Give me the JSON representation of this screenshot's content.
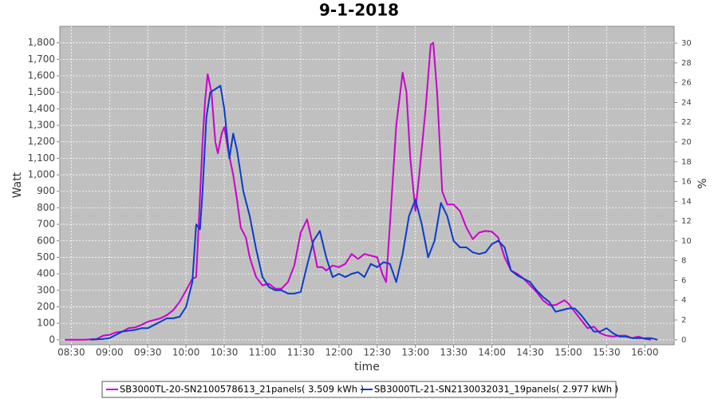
{
  "chart_data": {
    "type": "line",
    "title": "9-1-2018",
    "xlabel": "time",
    "ylabel": "Watt",
    "y2label": "%",
    "xlim": [
      "08:21",
      "16:23"
    ],
    "xticks": [
      "08:30",
      "09:00",
      "09:30",
      "10:00",
      "10:30",
      "11:00",
      "11:30",
      "12:00",
      "12:30",
      "13:00",
      "13:30",
      "14:00",
      "14:30",
      "15:00",
      "15:30",
      "16:00"
    ],
    "ylim": [
      -30,
      1900
    ],
    "yticks": [
      0,
      100,
      200,
      300,
      400,
      500,
      600,
      700,
      800,
      900,
      {
        "value": 1000,
        "label": "1,000"
      },
      {
        "value": 1100,
        "label": "1,100"
      },
      {
        "value": 1200,
        "label": "1,200"
      },
      {
        "value": 1300,
        "label": "1,300"
      },
      {
        "value": 1400,
        "label": "1,400"
      },
      {
        "value": 1500,
        "label": "1,500"
      },
      {
        "value": 1600,
        "label": "1,600"
      },
      {
        "value": 1700,
        "label": "1,700"
      },
      {
        "value": 1800,
        "label": "1,800"
      }
    ],
    "y2lim": [
      -0.5,
      31.7
    ],
    "y2ticks": [
      0,
      2,
      4,
      6,
      8,
      10,
      12,
      14,
      16,
      18,
      20,
      22,
      24,
      26,
      28,
      30
    ],
    "grid": true,
    "legend": "bottom",
    "series": [
      {
        "name": "SB3000TL-20-SN2100578613_21panels( 3.509 kWh )",
        "color": "#cc00cc",
        "x": [
          "08:25",
          "08:40",
          "08:50",
          "08:55",
          "09:00",
          "09:05",
          "09:10",
          "09:15",
          "09:20",
          "09:25",
          "09:30",
          "09:35",
          "09:40",
          "09:45",
          "09:50",
          "09:55",
          "10:00",
          "10:05",
          "10:08",
          "10:10",
          "10:13",
          "10:15",
          "10:17",
          "10:20",
          "10:23",
          "10:25",
          "10:28",
          "10:30",
          "10:33",
          "10:37",
          "10:40",
          "10:43",
          "10:47",
          "10:50",
          "10:55",
          "11:00",
          "11:05",
          "11:10",
          "11:15",
          "11:20",
          "11:25",
          "11:30",
          "11:35",
          "11:40",
          "11:43",
          "11:47",
          "11:50",
          "11:55",
          "12:00",
          "12:05",
          "12:10",
          "12:15",
          "12:20",
          "12:25",
          "12:30",
          "12:34",
          "12:37",
          "12:40",
          "12:45",
          "12:50",
          "12:53",
          "12:56",
          "13:00",
          "13:03",
          "13:08",
          "13:12",
          "13:14",
          "13:17",
          "13:21",
          "13:25",
          "13:30",
          "13:35",
          "13:40",
          "13:45",
          "13:50",
          "13:55",
          "14:00",
          "14:05",
          "14:10",
          "14:15",
          "14:20",
          "14:25",
          "14:30",
          "14:35",
          "14:40",
          "14:45",
          "14:50",
          "14:57",
          "15:00",
          "15:05",
          "15:10",
          "15:15",
          "15:20",
          "15:25",
          "15:30",
          "15:35",
          "15:40",
          "15:45",
          "15:50",
          "15:55",
          "16:00",
          "16:05"
        ],
        "values": [
          0,
          0,
          5,
          25,
          30,
          45,
          50,
          70,
          75,
          90,
          110,
          120,
          130,
          150,
          180,
          230,
          300,
          370,
          380,
          700,
          1200,
          1450,
          1610,
          1500,
          1200,
          1130,
          1250,
          1290,
          1150,
          1000,
          850,
          680,
          620,
          500,
          380,
          330,
          340,
          310,
          310,
          350,
          450,
          650,
          730,
          560,
          440,
          440,
          420,
          450,
          440,
          460,
          520,
          490,
          520,
          510,
          500,
          400,
          350,
          700,
          1300,
          1620,
          1500,
          1100,
          780,
          1000,
          1400,
          1790,
          1800,
          1500,
          900,
          820,
          820,
          780,
          680,
          610,
          650,
          660,
          655,
          620,
          500,
          420,
          400,
          370,
          330,
          290,
          240,
          210,
          210,
          240,
          220,
          170,
          120,
          70,
          80,
          40,
          25,
          20,
          25,
          25,
          10,
          20,
          5,
          0
        ]
      },
      {
        "name": "SB3000TL-21-SN2130032031_19panels( 2.977 kWh )",
        "color": "#0a3cc8",
        "x": [
          "08:45",
          "08:55",
          "09:00",
          "09:05",
          "09:10",
          "09:15",
          "09:20",
          "09:25",
          "09:30",
          "09:35",
          "09:40",
          "09:45",
          "09:50",
          "09:55",
          "10:00",
          "10:05",
          "10:08",
          "10:11",
          "10:13",
          "10:16",
          "10:19",
          "10:23",
          "10:27",
          "10:30",
          "10:34",
          "10:37",
          "10:40",
          "10:45",
          "10:50",
          "10:55",
          "11:00",
          "11:05",
          "11:10",
          "11:15",
          "11:20",
          "11:25",
          "11:30",
          "11:35",
          "11:40",
          "11:45",
          "11:50",
          "11:55",
          "12:00",
          "12:05",
          "12:10",
          "12:15",
          "12:20",
          "12:25",
          "12:30",
          "12:35",
          "12:40",
          "12:45",
          "12:50",
          "12:55",
          "13:00",
          "13:05",
          "13:10",
          "13:15",
          "13:20",
          "13:25",
          "13:30",
          "13:35",
          "13:40",
          "13:45",
          "13:50",
          "13:55",
          "14:00",
          "14:05",
          "14:10",
          "14:15",
          "14:20",
          "14:25",
          "14:30",
          "14:35",
          "14:40",
          "14:45",
          "14:50",
          "14:55",
          "15:00",
          "15:05",
          "15:10",
          "15:15",
          "15:20",
          "15:25",
          "15:30",
          "15:35",
          "15:40",
          "15:45",
          "15:50",
          "15:55",
          "16:00",
          "16:05",
          "16:10"
        ],
        "values": [
          0,
          5,
          10,
          30,
          50,
          55,
          60,
          70,
          70,
          90,
          110,
          130,
          130,
          140,
          200,
          350,
          700,
          670,
          900,
          1350,
          1500,
          1520,
          1540,
          1400,
          1100,
          1250,
          1150,
          900,
          750,
          550,
          380,
          320,
          300,
          300,
          280,
          280,
          290,
          450,
          600,
          660,
          500,
          380,
          400,
          380,
          400,
          410,
          380,
          460,
          440,
          470,
          460,
          350,
          520,
          750,
          850,
          700,
          500,
          600,
          830,
          750,
          600,
          560,
          560,
          530,
          520,
          530,
          580,
          600,
          560,
          420,
          390,
          370,
          350,
          300,
          260,
          230,
          170,
          180,
          190,
          190,
          150,
          100,
          50,
          50,
          70,
          40,
          20,
          20,
          10,
          10,
          10,
          10,
          0
        ]
      }
    ]
  }
}
